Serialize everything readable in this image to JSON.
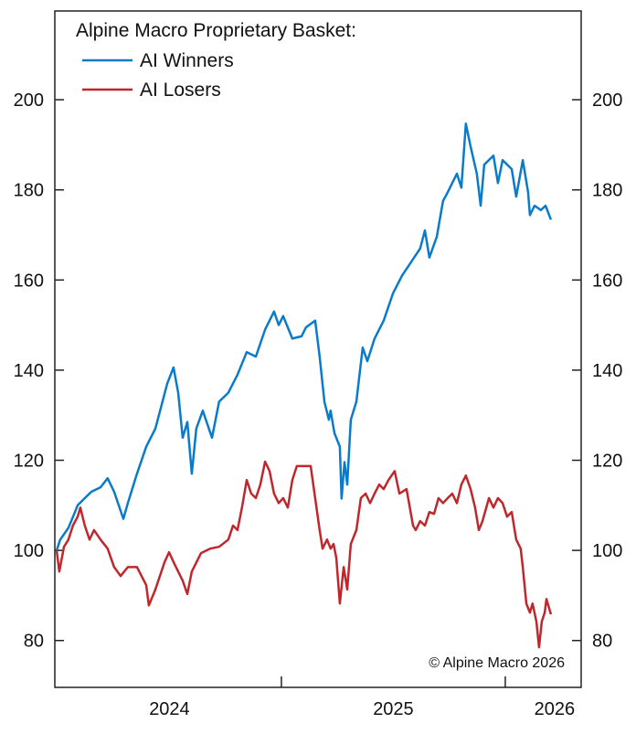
{
  "chart_data": {
    "type": "line",
    "title": "Alpine Macro Proprietary Basket:",
    "xlabel": "",
    "ylabel": "",
    "xlim": [
      2023.988,
      2026.339
    ],
    "ylim": [
      69.6,
      219.7
    ],
    "yticks": [
      80,
      100,
      120,
      140,
      160,
      180,
      200
    ],
    "xticks_marks": [
      2025,
      2026
    ],
    "xtick_labels": [
      {
        "label": "2024",
        "x": 2024.5
      },
      {
        "label": "2025",
        "x": 2025.5
      },
      {
        "label": "2026",
        "x": 2026.22
      }
    ],
    "grid": false,
    "legend_position": "top-left",
    "annotation": "© Alpine Macro 2026",
    "series": [
      {
        "name": "AI Winners",
        "color": "#0a7bca",
        "points": [
          [
            2023.996,
            100
          ],
          [
            2024.012,
            102.4
          ],
          [
            2024.049,
            105
          ],
          [
            2024.09,
            110
          ],
          [
            2024.11,
            111
          ],
          [
            2024.151,
            113
          ],
          [
            2024.192,
            114
          ],
          [
            2024.224,
            116
          ],
          [
            2024.253,
            113
          ],
          [
            2024.294,
            107
          ],
          [
            2024.314,
            110.5
          ],
          [
            2024.355,
            117
          ],
          [
            2024.396,
            123
          ],
          [
            2024.437,
            127
          ],
          [
            2024.469,
            133
          ],
          [
            2024.49,
            137
          ],
          [
            2024.518,
            140.6
          ],
          [
            2024.539,
            135
          ],
          [
            2024.559,
            125
          ],
          [
            2024.58,
            128.5
          ],
          [
            2024.6,
            117
          ],
          [
            2024.62,
            127
          ],
          [
            2024.649,
            131
          ],
          [
            2024.69,
            125
          ],
          [
            2024.722,
            133
          ],
          [
            2024.763,
            135
          ],
          [
            2024.804,
            139
          ],
          [
            2024.845,
            144
          ],
          [
            2024.886,
            143
          ],
          [
            2024.927,
            149
          ],
          [
            2024.967,
            153
          ],
          [
            2024.988,
            150
          ],
          [
            2025.008,
            152
          ],
          [
            2025.049,
            147
          ],
          [
            2025.09,
            147.5
          ],
          [
            2025.11,
            149.5
          ],
          [
            2025.151,
            151
          ],
          [
            2025.171,
            143
          ],
          [
            2025.192,
            133
          ],
          [
            2025.212,
            129
          ],
          [
            2025.22,
            131
          ],
          [
            2025.237,
            126
          ],
          [
            2025.261,
            123
          ],
          [
            2025.269,
            111.5
          ],
          [
            2025.282,
            119.6
          ],
          [
            2025.294,
            114.6
          ],
          [
            2025.31,
            129
          ],
          [
            2025.335,
            133
          ],
          [
            2025.363,
            145
          ],
          [
            2025.384,
            142
          ],
          [
            2025.416,
            147
          ],
          [
            2025.457,
            151
          ],
          [
            2025.498,
            157
          ],
          [
            2025.539,
            161
          ],
          [
            2025.58,
            164
          ],
          [
            2025.62,
            167
          ],
          [
            2025.641,
            171
          ],
          [
            2025.661,
            165
          ],
          [
            2025.694,
            169.6
          ],
          [
            2025.722,
            177.5
          ],
          [
            2025.743,
            179.5
          ],
          [
            2025.784,
            183.6
          ],
          [
            2025.804,
            180.5
          ],
          [
            2025.824,
            194.7
          ],
          [
            2025.845,
            189.6
          ],
          [
            2025.873,
            183.6
          ],
          [
            2025.89,
            176.5
          ],
          [
            2025.906,
            185.6
          ],
          [
            2025.947,
            187.6
          ],
          [
            2025.967,
            181.5
          ],
          [
            2025.988,
            186.6
          ],
          [
            2026.029,
            184.6
          ],
          [
            2026.049,
            178.5
          ],
          [
            2026.078,
            186.6
          ],
          [
            2026.102,
            179.5
          ],
          [
            2026.11,
            174.4
          ],
          [
            2026.131,
            176.5
          ],
          [
            2026.159,
            175.5
          ],
          [
            2026.18,
            176.5
          ],
          [
            2026.204,
            173.4
          ]
        ]
      },
      {
        "name": "AI Losers",
        "color": "#c0272d",
        "points": [
          [
            2023.996,
            100
          ],
          [
            2024.008,
            95.3
          ],
          [
            2024.029,
            100.8
          ],
          [
            2024.049,
            102.4
          ],
          [
            2024.069,
            105.5
          ],
          [
            2024.09,
            107.5
          ],
          [
            2024.102,
            109.5
          ],
          [
            2024.122,
            105.5
          ],
          [
            2024.143,
            102.4
          ],
          [
            2024.163,
            104.5
          ],
          [
            2024.192,
            102.4
          ],
          [
            2024.224,
            100.4
          ],
          [
            2024.253,
            96.3
          ],
          [
            2024.282,
            94.3
          ],
          [
            2024.314,
            96.3
          ],
          [
            2024.355,
            96.3
          ],
          [
            2024.396,
            92.3
          ],
          [
            2024.408,
            87.8
          ],
          [
            2024.437,
            91.3
          ],
          [
            2024.478,
            97.4
          ],
          [
            2024.498,
            99.6
          ],
          [
            2024.518,
            97.4
          ],
          [
            2024.559,
            93.3
          ],
          [
            2024.58,
            90.3
          ],
          [
            2024.6,
            95.3
          ],
          [
            2024.641,
            99.4
          ],
          [
            2024.682,
            100.4
          ],
          [
            2024.722,
            100.8
          ],
          [
            2024.763,
            102.4
          ],
          [
            2024.784,
            105.5
          ],
          [
            2024.804,
            104.5
          ],
          [
            2024.824,
            109.5
          ],
          [
            2024.845,
            115.6
          ],
          [
            2024.865,
            112.6
          ],
          [
            2024.886,
            111.6
          ],
          [
            2024.906,
            114.6
          ],
          [
            2024.927,
            119.7
          ],
          [
            2024.947,
            117.6
          ],
          [
            2024.967,
            112.6
          ],
          [
            2024.988,
            110.5
          ],
          [
            2025.008,
            111.6
          ],
          [
            2025.029,
            109.5
          ],
          [
            2025.049,
            115.6
          ],
          [
            2025.069,
            118.7
          ],
          [
            2025.11,
            118.7
          ],
          [
            2025.131,
            118.7
          ],
          [
            2025.151,
            111.6
          ],
          [
            2025.171,
            104.5
          ],
          [
            2025.184,
            100.4
          ],
          [
            2025.204,
            102.4
          ],
          [
            2025.22,
            100.4
          ],
          [
            2025.233,
            101.4
          ],
          [
            2025.245,
            98.4
          ],
          [
            2025.261,
            88.2
          ],
          [
            2025.278,
            96.3
          ],
          [
            2025.294,
            91.3
          ],
          [
            2025.31,
            101.4
          ],
          [
            2025.335,
            104.5
          ],
          [
            2025.355,
            111.6
          ],
          [
            2025.376,
            112.6
          ],
          [
            2025.396,
            110.5
          ],
          [
            2025.416,
            112.6
          ],
          [
            2025.437,
            114.6
          ],
          [
            2025.457,
            113.6
          ],
          [
            2025.478,
            115.6
          ],
          [
            2025.506,
            117.6
          ],
          [
            2025.527,
            112.6
          ],
          [
            2025.559,
            113.6
          ],
          [
            2025.588,
            105.5
          ],
          [
            2025.6,
            104.5
          ],
          [
            2025.62,
            106.5
          ],
          [
            2025.641,
            105.5
          ],
          [
            2025.661,
            108.5
          ],
          [
            2025.682,
            108.1
          ],
          [
            2025.702,
            111.6
          ],
          [
            2025.722,
            110.5
          ],
          [
            2025.743,
            111.6
          ],
          [
            2025.763,
            112.6
          ],
          [
            2025.784,
            110.5
          ],
          [
            2025.804,
            114.6
          ],
          [
            2025.824,
            116.6
          ],
          [
            2025.845,
            113.6
          ],
          [
            2025.865,
            109.5
          ],
          [
            2025.882,
            104.5
          ],
          [
            2025.898,
            106.5
          ],
          [
            2025.927,
            111.6
          ],
          [
            2025.947,
            109.5
          ],
          [
            2025.967,
            111.6
          ],
          [
            2025.988,
            110.5
          ],
          [
            2026.008,
            107.5
          ],
          [
            2026.029,
            108.5
          ],
          [
            2026.049,
            102.4
          ],
          [
            2026.069,
            100.4
          ],
          [
            2026.078,
            96.3
          ],
          [
            2026.094,
            88.2
          ],
          [
            2026.11,
            86.2
          ],
          [
            2026.122,
            88.2
          ],
          [
            2026.139,
            84.2
          ],
          [
            2026.151,
            78.5
          ],
          [
            2026.163,
            84.2
          ],
          [
            2026.176,
            86.2
          ],
          [
            2026.184,
            89.2
          ],
          [
            2026.204,
            85.8
          ]
        ]
      }
    ]
  }
}
